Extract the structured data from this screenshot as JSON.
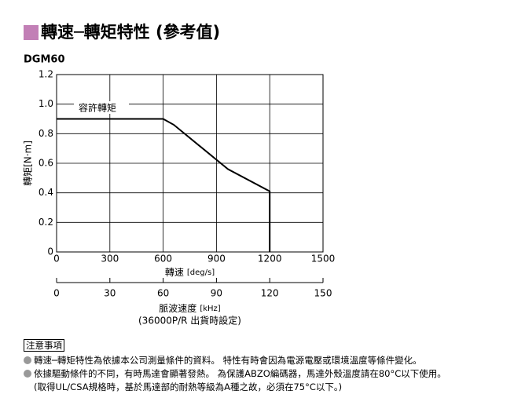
{
  "header": {
    "title": "轉速─轉矩特性 (參考值)",
    "subtitle": "DGM60"
  },
  "chart_data": {
    "type": "line",
    "xlabel": "轉速",
    "xlabel_unit": "[deg/s]",
    "ylabel": "轉矩[N·m]",
    "x": [
      0,
      600,
      660,
      965,
      1200,
      1200
    ],
    "series": [
      {
        "name": "容許轉矩",
        "color": "#000000",
        "values": [
          0.9,
          0.9,
          0.86,
          0.56,
          0.41,
          0
        ]
      }
    ],
    "xlim": [
      0,
      1500
    ],
    "xticks": [
      0,
      300,
      600,
      900,
      1200,
      1500
    ],
    "ylim": [
      0,
      1.2
    ],
    "yticks": [
      0,
      0.2,
      0.4,
      0.6,
      0.8,
      {
        "value": 1,
        "label": "1.0"
      },
      1.2
    ],
    "grid": true,
    "x2lim": [
      0,
      150
    ],
    "x2ticks": [
      0,
      30,
      60,
      90,
      120,
      150
    ],
    "x2label": "脈波速度",
    "x2label_unit": "[kHz]",
    "x2note": "(36000P/R 出貨時設定)"
  },
  "notes": {
    "heading": "注意事項",
    "items": [
      [
        "轉速─轉矩特性為依據本公司測量條件的資料。 特性有時會因為電源電壓或環境溫度等條件變化。"
      ],
      [
        "依據驅動條件的不同，有時馬達會顯著發熱。 為保護ABZO編碼器，馬達外殼溫度請在80°C以下使用。",
        "(取得UL/CSA規格時，基於馬達部的耐熱等級為A種之故，必須在75°C以下。)"
      ]
    ]
  }
}
